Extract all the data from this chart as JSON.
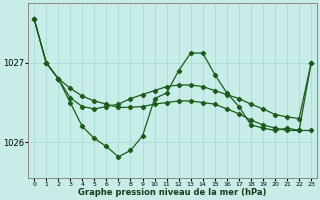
{
  "xlabel": "Graphe pression niveau de la mer (hPa)",
  "background_color": "#c8ede8",
  "grid_color": "#a8ddd4",
  "line_color": "#1a5c1a",
  "ylim": [
    1025.55,
    1027.75
  ],
  "yticks": [
    1026,
    1027
  ],
  "xticks": [
    0,
    1,
    2,
    3,
    4,
    5,
    6,
    7,
    8,
    9,
    10,
    11,
    12,
    13,
    14,
    15,
    16,
    17,
    18,
    19,
    20,
    21,
    22,
    23
  ],
  "series_A": [
    1027.55,
    1027.0,
    1026.8,
    1026.68,
    1026.58,
    1026.52,
    1026.48,
    1026.44,
    1026.44,
    1026.45,
    1026.48,
    1026.5,
    1026.52,
    1026.52,
    1026.5,
    1026.48,
    1026.42,
    1026.36,
    1026.28,
    1026.22,
    1026.18,
    1026.15,
    1026.15,
    1026.15
  ],
  "series_B": [
    1027.55,
    1027.0,
    1026.8,
    1026.56,
    1026.45,
    1026.42,
    1026.45,
    1026.48,
    1026.55,
    1026.6,
    1026.65,
    1026.7,
    1026.72,
    1026.72,
    1026.7,
    1026.65,
    1026.6,
    1026.55,
    1026.48,
    1026.42,
    1026.35,
    1026.32,
    1026.3,
    1027.0
  ],
  "series_C": [
    1027.55,
    1027.0,
    1026.8,
    1026.5,
    1026.2,
    1026.05,
    1025.95,
    1025.82,
    1025.9,
    1026.08,
    1026.55,
    1026.62,
    1026.9,
    1027.12,
    1027.12,
    1026.85,
    1026.62,
    1026.45,
    1026.22,
    1026.18,
    1026.15,
    1026.18,
    1026.15,
    1027.0
  ]
}
